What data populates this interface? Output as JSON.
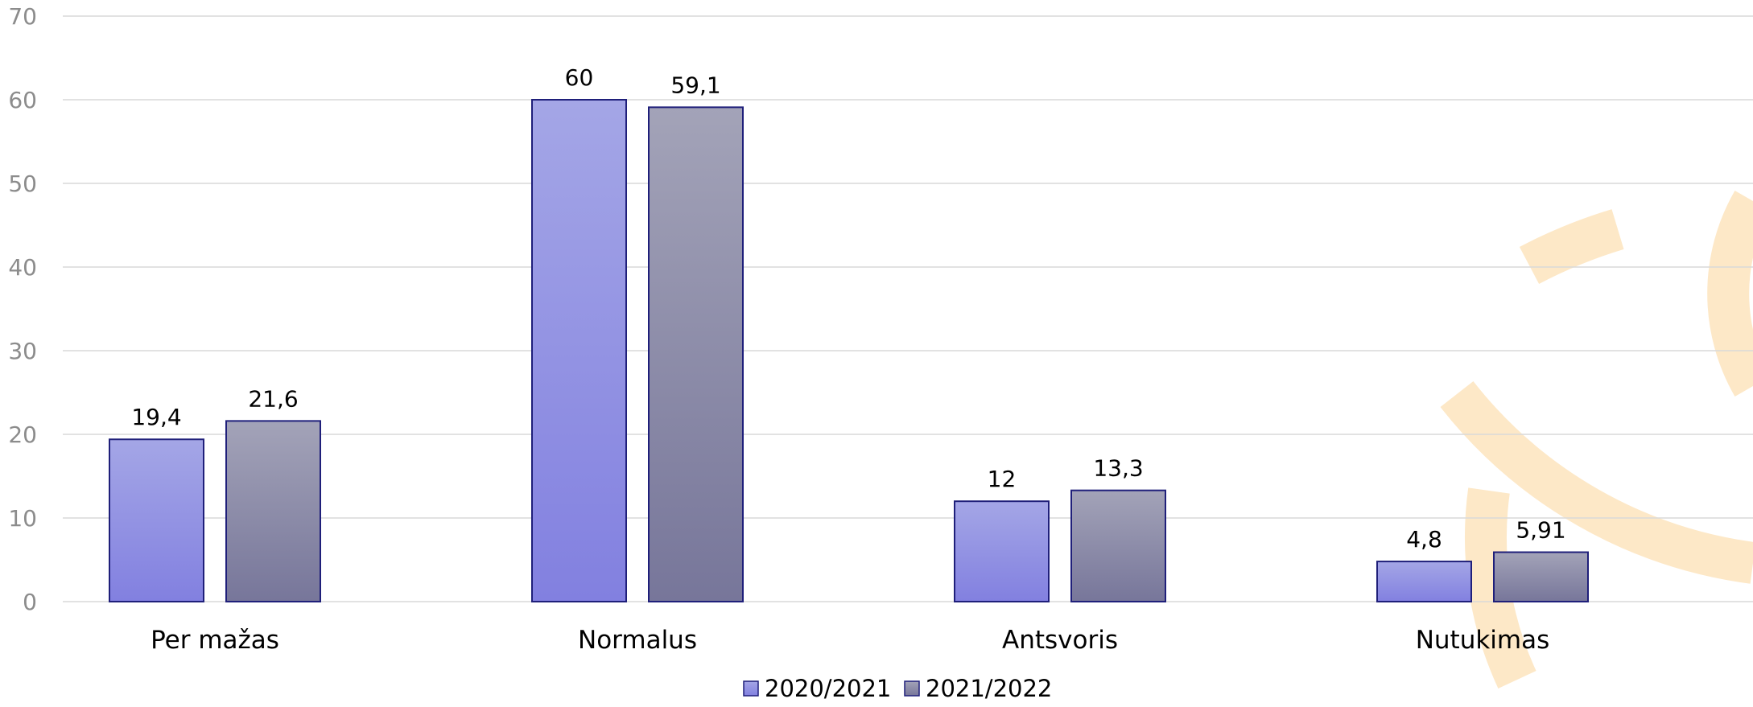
{
  "chart_data": {
    "type": "bar",
    "categories": [
      "Per mažas",
      "Normalus",
      "Antsvoris",
      "Nutukimas"
    ],
    "series": [
      {
        "name": "2020/2021",
        "values": [
          19.4,
          60,
          12,
          4.8
        ],
        "labels": [
          "19,4",
          "60",
          "12",
          "4,8"
        ]
      },
      {
        "name": "2021/2022",
        "values": [
          21.6,
          59.1,
          13.3,
          5.91
        ],
        "labels": [
          "21,6",
          "59,1",
          "13,3",
          "5,91"
        ]
      }
    ],
    "yticks": [
      "0",
      "10",
      "20",
      "30",
      "40",
      "50",
      "60",
      "70"
    ],
    "ylim": [
      0,
      70
    ],
    "grid": true,
    "legend": "bottom-center",
    "colors": {
      "series_1_top": "#a4a6e6",
      "series_1_bottom": "#8280e0",
      "series_2_top": "#a3a3b8",
      "series_2_bottom": "#77769a",
      "bar_border": "#1f1f7a",
      "grid": "#d9d9d9",
      "watermark": "#fde8c7"
    }
  }
}
